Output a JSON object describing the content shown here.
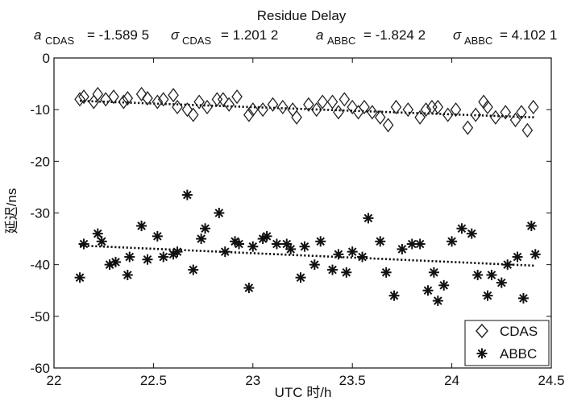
{
  "chart_data": {
    "type": "scatter",
    "title": "Residue Delay",
    "stats": {
      "a_label": "a",
      "sigma_label": "σ",
      "cdas_sub": "CDAS",
      "abbc_sub": "ABBC",
      "a_cdas": "= -1.589 5",
      "sigma_cdas": "= 1.201 2",
      "a_abbc": "= -1.824 2",
      "sigma_abbc": "= 4.102 1"
    },
    "xlabel": "UTC 时/h",
    "ylabel": "延迟/ns",
    "xlim": [
      22,
      24.5
    ],
    "ylim": [
      -60,
      0
    ],
    "xticks": [
      22,
      22.5,
      23,
      23.5,
      24,
      24.5
    ],
    "xtick_labels": [
      "22",
      "22.5",
      "23",
      "23.5",
      "24",
      "24.5"
    ],
    "yticks": [
      0,
      -10,
      -20,
      -30,
      -40,
      -50,
      -60
    ],
    "ytick_labels": [
      "0",
      "-10",
      "-20",
      "-30",
      "-40",
      "-50",
      "-60"
    ],
    "grid": false,
    "legend_position": "bottom-right",
    "series": [
      {
        "name": "CDAS",
        "marker": "diamond",
        "x": [
          22.13,
          22.15,
          22.2,
          22.22,
          22.26,
          22.3,
          22.35,
          22.37,
          22.44,
          22.47,
          22.52,
          22.55,
          22.6,
          22.62,
          22.67,
          22.7,
          22.73,
          22.77,
          22.82,
          22.85,
          22.88,
          22.92,
          22.98,
          23.0,
          23.05,
          23.1,
          23.15,
          23.2,
          23.22,
          23.28,
          23.32,
          23.35,
          23.4,
          23.43,
          23.46,
          23.5,
          23.53,
          23.56,
          23.6,
          23.64,
          23.68,
          23.72,
          23.78,
          23.84,
          23.87,
          23.9,
          23.93,
          23.98,
          24.02,
          24.08,
          24.12,
          24.16,
          24.18,
          24.22,
          24.27,
          24.32,
          24.35,
          24.38,
          24.41
        ],
        "y": [
          -8.0,
          -7.5,
          -8.5,
          -7.0,
          -8.0,
          -7.5,
          -8.5,
          -7.8,
          -7.0,
          -7.8,
          -8.5,
          -8.0,
          -7.2,
          -9.5,
          -10.0,
          -11.0,
          -8.5,
          -9.5,
          -8.0,
          -8.0,
          -9.0,
          -7.5,
          -11.0,
          -10.0,
          -10.0,
          -9.0,
          -9.5,
          -10.0,
          -11.5,
          -9.0,
          -10.0,
          -8.5,
          -8.5,
          -10.5,
          -8.0,
          -9.5,
          -10.5,
          -9.5,
          -10.5,
          -11.5,
          -13.0,
          -9.5,
          -10.0,
          -11.5,
          -10.0,
          -9.5,
          -9.5,
          -11.0,
          -10.0,
          -13.5,
          -11.0,
          -8.5,
          -9.5,
          -11.5,
          -10.5,
          -12.0,
          -10.5,
          -14.0,
          -9.5
        ]
      },
      {
        "name": "ABBC",
        "marker": "asterisk",
        "x": [
          22.13,
          22.15,
          22.22,
          22.24,
          22.28,
          22.31,
          22.37,
          22.38,
          22.44,
          22.47,
          22.52,
          22.55,
          22.6,
          22.62,
          22.67,
          22.7,
          22.74,
          22.76,
          22.83,
          22.86,
          22.91,
          22.93,
          22.98,
          23.0,
          23.05,
          23.07,
          23.12,
          23.17,
          23.19,
          23.24,
          23.26,
          23.31,
          23.34,
          23.4,
          23.43,
          23.47,
          23.5,
          23.55,
          23.58,
          23.64,
          23.67,
          23.71,
          23.75,
          23.8,
          23.84,
          23.88,
          23.91,
          23.93,
          23.96,
          24.0,
          24.05,
          24.1,
          24.13,
          24.18,
          24.2,
          24.25,
          24.28,
          24.33,
          24.36,
          24.4,
          24.42
        ],
        "y": [
          -42.5,
          -36.0,
          -34.0,
          -35.5,
          -40.0,
          -39.5,
          -42.0,
          -38.5,
          -32.5,
          -39.0,
          -34.5,
          -38.5,
          -38.0,
          -37.5,
          -26.5,
          -41.0,
          -35.0,
          -33.0,
          -30.0,
          -37.5,
          -35.5,
          -36.0,
          -44.5,
          -36.5,
          -35.0,
          -34.5,
          -36.0,
          -36.0,
          -37.0,
          -42.5,
          -36.5,
          -40.0,
          -35.5,
          -41.0,
          -38.0,
          -41.5,
          -37.5,
          -38.5,
          -31.0,
          -35.5,
          -41.5,
          -46.0,
          -37.0,
          -36.0,
          -36.0,
          -45.0,
          -41.5,
          -47.0,
          -44.0,
          -35.5,
          -33.0,
          -34.0,
          -42.0,
          -46.0,
          -42.0,
          -43.5,
          -40.0,
          -38.5,
          -46.5,
          -32.5,
          -38.0
        ]
      }
    ],
    "trendlines": [
      {
        "series": "CDAS",
        "x": [
          22.13,
          24.42
        ],
        "y": [
          -8.3,
          -11.5
        ]
      },
      {
        "series": "ABBC",
        "x": [
          22.13,
          24.42
        ],
        "y": [
          -36.3,
          -40.2
        ]
      }
    ]
  }
}
